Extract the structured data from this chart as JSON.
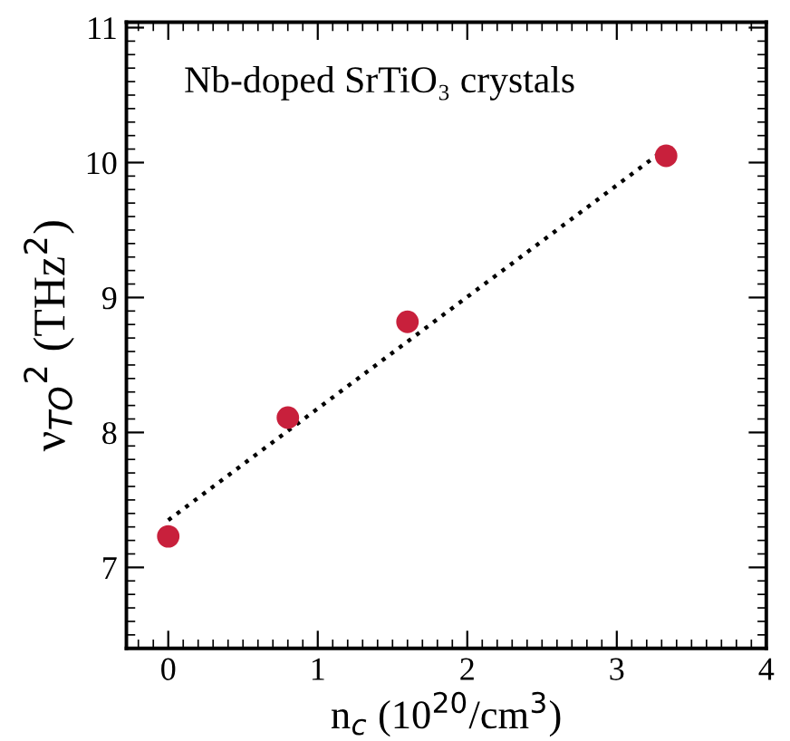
{
  "chart_data": {
    "type": "scatter",
    "xlabel": "n$_{c}$ (10$^{20}$/cm$^{3}$)",
    "ylabel": "ν$_{TO}$$^{2}$ (THz$^{2}$)",
    "annotations": [
      "Nb-doped SrTiO₃ crystals"
    ],
    "x": [
      0,
      0.8,
      1.6,
      3.33
    ],
    "series": [
      {
        "color": "#c8203c",
        "marker": "circle",
        "values": [
          7.23,
          8.11,
          8.82,
          10.05
        ]
      },
      {
        "type": "line",
        "color": "#000000",
        "line_style": "dotted",
        "marker": "none",
        "x": [
          0,
          3.3
        ],
        "values": [
          7.35,
          10.08
        ]
      }
    ],
    "xlim": [
      -0.28,
      4.0
    ],
    "ylim": [
      6.4,
      11.04
    ],
    "xticks": [
      0,
      1,
      2,
      3,
      4
    ],
    "yticks": [
      7,
      8,
      9,
      10,
      11
    ],
    "grid": false
  }
}
